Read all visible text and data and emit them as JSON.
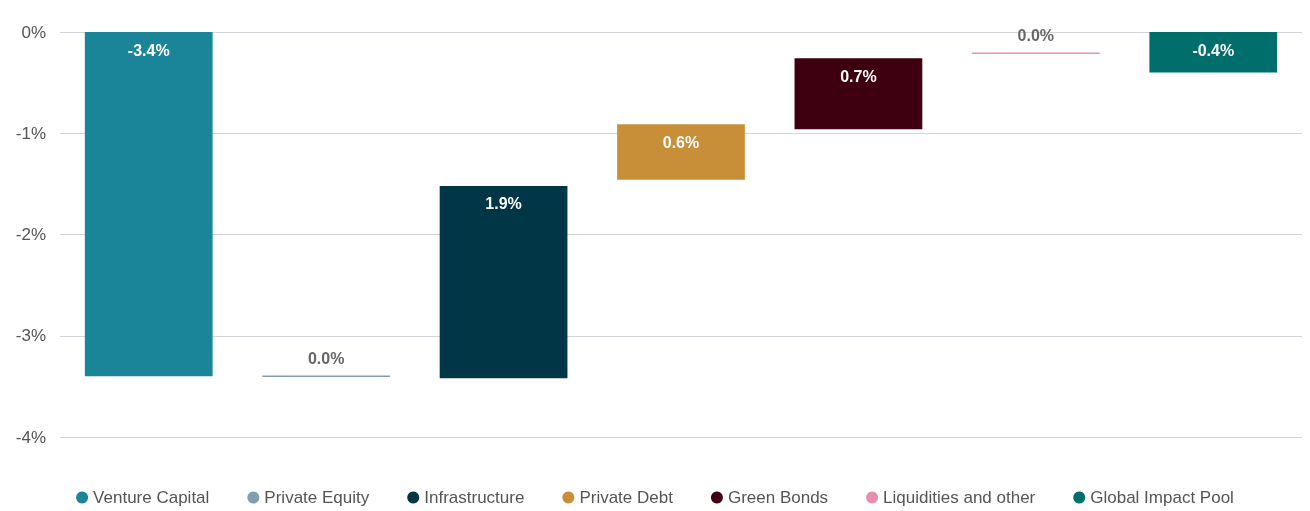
{
  "chart_data": {
    "type": "bar",
    "categories": [
      null,
      null,
      null,
      null,
      null,
      null,
      null
    ],
    "series": [
      {
        "name": "Venture Capital",
        "color": "#1a8499",
        "base": [
          0,
          null,
          null,
          null,
          null,
          null,
          null
        ],
        "values": [
          -3.4,
          null,
          null,
          null,
          null,
          null,
          null
        ],
        "value_labels": [
          "-3.4%",
          null,
          null,
          null,
          null,
          null,
          null
        ]
      },
      {
        "name": "Private Equity",
        "color": "#7f9fae",
        "base": [
          null,
          -3.4,
          null,
          null,
          null,
          null,
          null
        ],
        "values": [
          null,
          0,
          null,
          null,
          null,
          null,
          null
        ],
        "value_labels": [
          null,
          "0.0%",
          null,
          null,
          null,
          null,
          null
        ]
      },
      {
        "name": "Infrastructure",
        "color": "#003646",
        "base": [
          null,
          null,
          -3.42,
          null,
          null,
          null,
          null
        ],
        "values": [
          null,
          null,
          1.9,
          null,
          null,
          null,
          null
        ],
        "value_labels": [
          null,
          null,
          "1.9%",
          null,
          null,
          null,
          null
        ]
      },
      {
        "name": "Private Debt",
        "color": "#c98f38",
        "base": [
          null,
          null,
          null,
          -1.46,
          null,
          null,
          null
        ],
        "values": [
          null,
          null,
          null,
          0.55,
          null,
          null,
          null
        ],
        "value_labels": [
          null,
          null,
          null,
          "0.6%",
          null,
          null,
          null
        ]
      },
      {
        "name": "Green Bonds",
        "color": "#3e0010",
        "base": [
          null,
          null,
          null,
          null,
          -0.96,
          null,
          null
        ],
        "values": [
          null,
          null,
          null,
          null,
          0.7,
          null,
          null
        ],
        "value_labels": [
          null,
          null,
          null,
          null,
          "0.7%",
          null,
          null
        ]
      },
      {
        "name": "Liquidities and other",
        "color": "#e88fae",
        "base": [
          null,
          null,
          null,
          null,
          null,
          -0.21,
          null
        ],
        "values": [
          null,
          null,
          null,
          null,
          null,
          0,
          null
        ],
        "value_labels": [
          null,
          null,
          null,
          null,
          null,
          "0.0%",
          null
        ]
      },
      {
        "name": "Global Impact Pool",
        "color": "#006e6a",
        "base": [
          null,
          null,
          null,
          null,
          null,
          null,
          0
        ],
        "values": [
          null,
          null,
          null,
          null,
          null,
          null,
          -0.4
        ],
        "value_labels": [
          null,
          null,
          null,
          null,
          null,
          null,
          "-0.4%"
        ]
      }
    ],
    "ylim": [
      -4,
      0
    ],
    "yticks": [
      {
        "value": -4,
        "label": "-4%"
      },
      {
        "value": -3,
        "label": "-3%"
      },
      {
        "value": -2,
        "label": "-2%"
      },
      {
        "value": -1,
        "label": "-1%"
      },
      {
        "value": 0,
        "label": "0%"
      }
    ],
    "grid": "y",
    "legend": "bottom"
  }
}
